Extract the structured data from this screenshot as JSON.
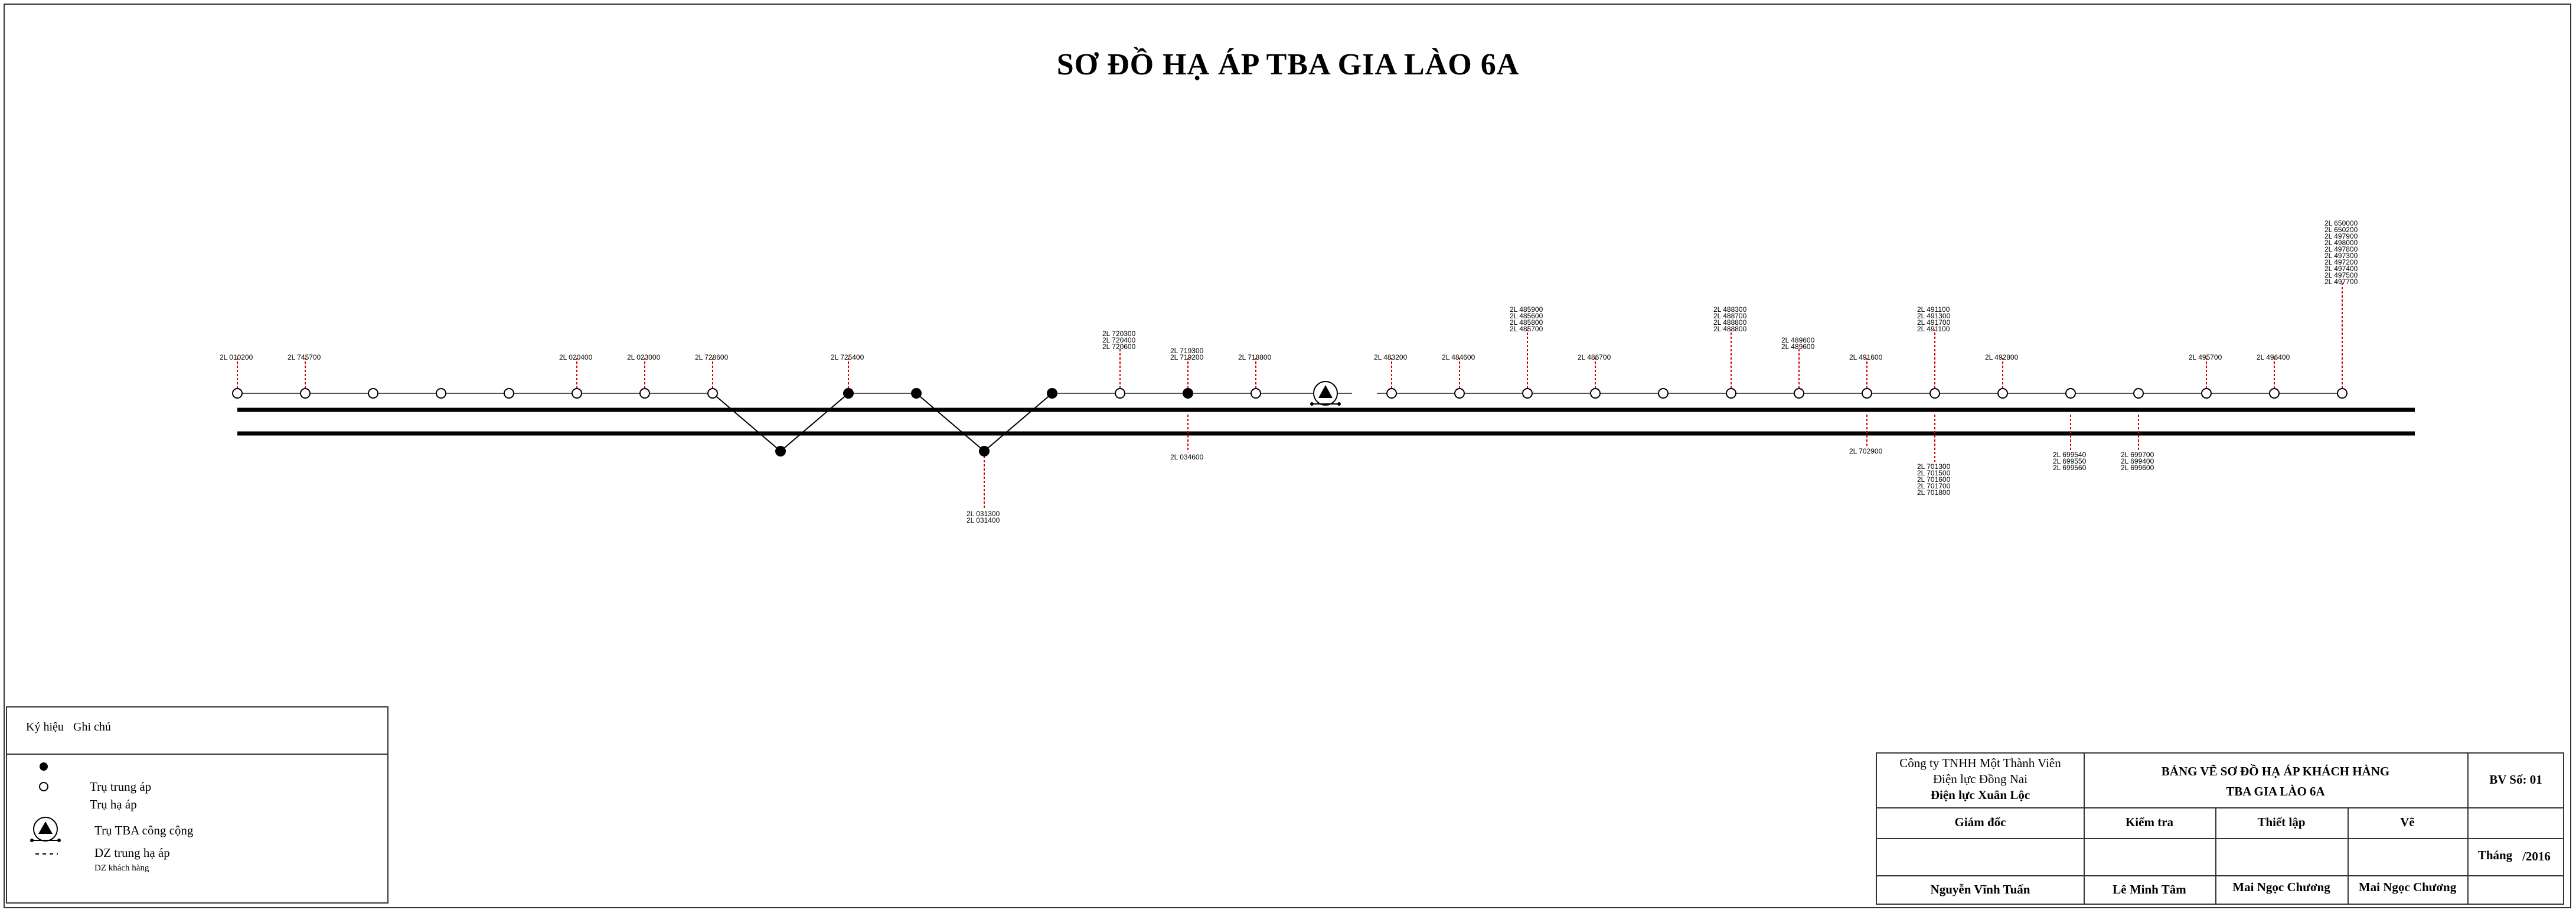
{
  "title": "SƠ ĐỒ HẠ ÁP TBA GIA LÀO 6A",
  "diagram": {
    "top_labels": [
      {
        "lines": [
          "2L 010200"
        ]
      },
      {
        "lines": [
          "2L 745700"
        ]
      },
      {
        "lines": [
          "2L 020400"
        ]
      },
      {
        "lines": [
          "2L 023000"
        ]
      },
      {
        "lines": [
          "2L 728600"
        ]
      },
      {
        "lines": [
          "2L 725400"
        ]
      },
      {
        "lines": [
          "2L 720300",
          "2L 720400",
          "2L 720600"
        ]
      },
      {
        "lines": [
          "2L 719300",
          "2L 719200"
        ]
      },
      {
        "lines": [
          "2L 718800"
        ]
      },
      {
        "lines": [
          "2L 483200"
        ]
      },
      {
        "lines": [
          "2L 484600"
        ]
      },
      {
        "lines": [
          "2L 485900",
          "2L 485600",
          "2L 485800",
          "2L 485700"
        ]
      },
      {
        "lines": [
          "2L 486700"
        ]
      },
      {
        "lines": [
          "2L 488300",
          "2L 488700",
          "2L 488800",
          "2L 488800"
        ]
      },
      {
        "lines": [
          "2L 489600",
          "2L 489600"
        ]
      },
      {
        "lines": [
          "2L 491600"
        ]
      },
      {
        "lines": [
          "2L 491100",
          "2L 491300",
          "2L 491700",
          "2L 491100"
        ]
      },
      {
        "lines": [
          "2L 492800"
        ]
      },
      {
        "lines": [
          "2L 495700"
        ]
      },
      {
        "lines": [
          "2L 496400"
        ]
      },
      {
        "lines": [
          "2L 650000",
          "2L 650200",
          "2L 497900",
          "2L 498000",
          "2L 497800",
          "2L 497300",
          "2L 497200",
          "2L 497400",
          "2L 497500",
          "2L 497700"
        ]
      }
    ],
    "bottom_labels": [
      {
        "lines": [
          "2L 031300",
          "2L 031400"
        ]
      },
      {
        "lines": [
          "2L 034600"
        ]
      },
      {
        "lines": [
          "2L 702900"
        ]
      },
      {
        "lines": [
          "2L 701300",
          "2L 701500",
          "2L 701600",
          "2L 701700",
          "2L 701800"
        ]
      },
      {
        "lines": [
          "2L 699540",
          "2L 699550",
          "2L 699560"
        ]
      },
      {
        "lines": [
          "2L 699700",
          "2L 699400",
          "2L 699600"
        ]
      }
    ]
  },
  "legend": {
    "col_symbol": "Ký hiệu",
    "col_note": "Ghi chú",
    "items": [
      {
        "icon": "filled-dot",
        "label": "Trụ trung áp"
      },
      {
        "icon": "hollow-dot",
        "label": "Trụ hạ áp"
      },
      {
        "icon": "transformer-triangle",
        "label": "Trụ TBA công cộng"
      },
      {
        "icon": "dashed-line",
        "label": "DZ trung hạ áp"
      },
      {
        "icon": "none",
        "label": "DZ khách hàng"
      }
    ]
  },
  "title_block": {
    "company_l1": "Công ty TNHH Một Thành Viên",
    "company_l2": "Điện lực Đồng Nai",
    "company_l3": "Điện lực Xuân Lộc",
    "drawing_name_l1": "BẢNG VẼ SƠ ĐỒ HẠ ÁP KHÁCH HÀNG",
    "drawing_name_l2": "TBA GIA LÀO 6A",
    "sheet_no": "BV Số: 01",
    "role_director": "Giám đốc",
    "role_check": "Kiểm tra",
    "role_design": "Thiết lập",
    "role_draw": "Vẽ",
    "date_label": "Tháng",
    "date_value": "/2016",
    "name_director": "Nguyễn Vĩnh Tuấn",
    "name_check": "Lê Minh Tâm",
    "name_design": "Mai Ngọc Chương",
    "name_draw": "Mai Ngọc Chương"
  },
  "colors": {
    "line": "#000000",
    "pole_line": "#555555",
    "drop": "#d40000"
  }
}
